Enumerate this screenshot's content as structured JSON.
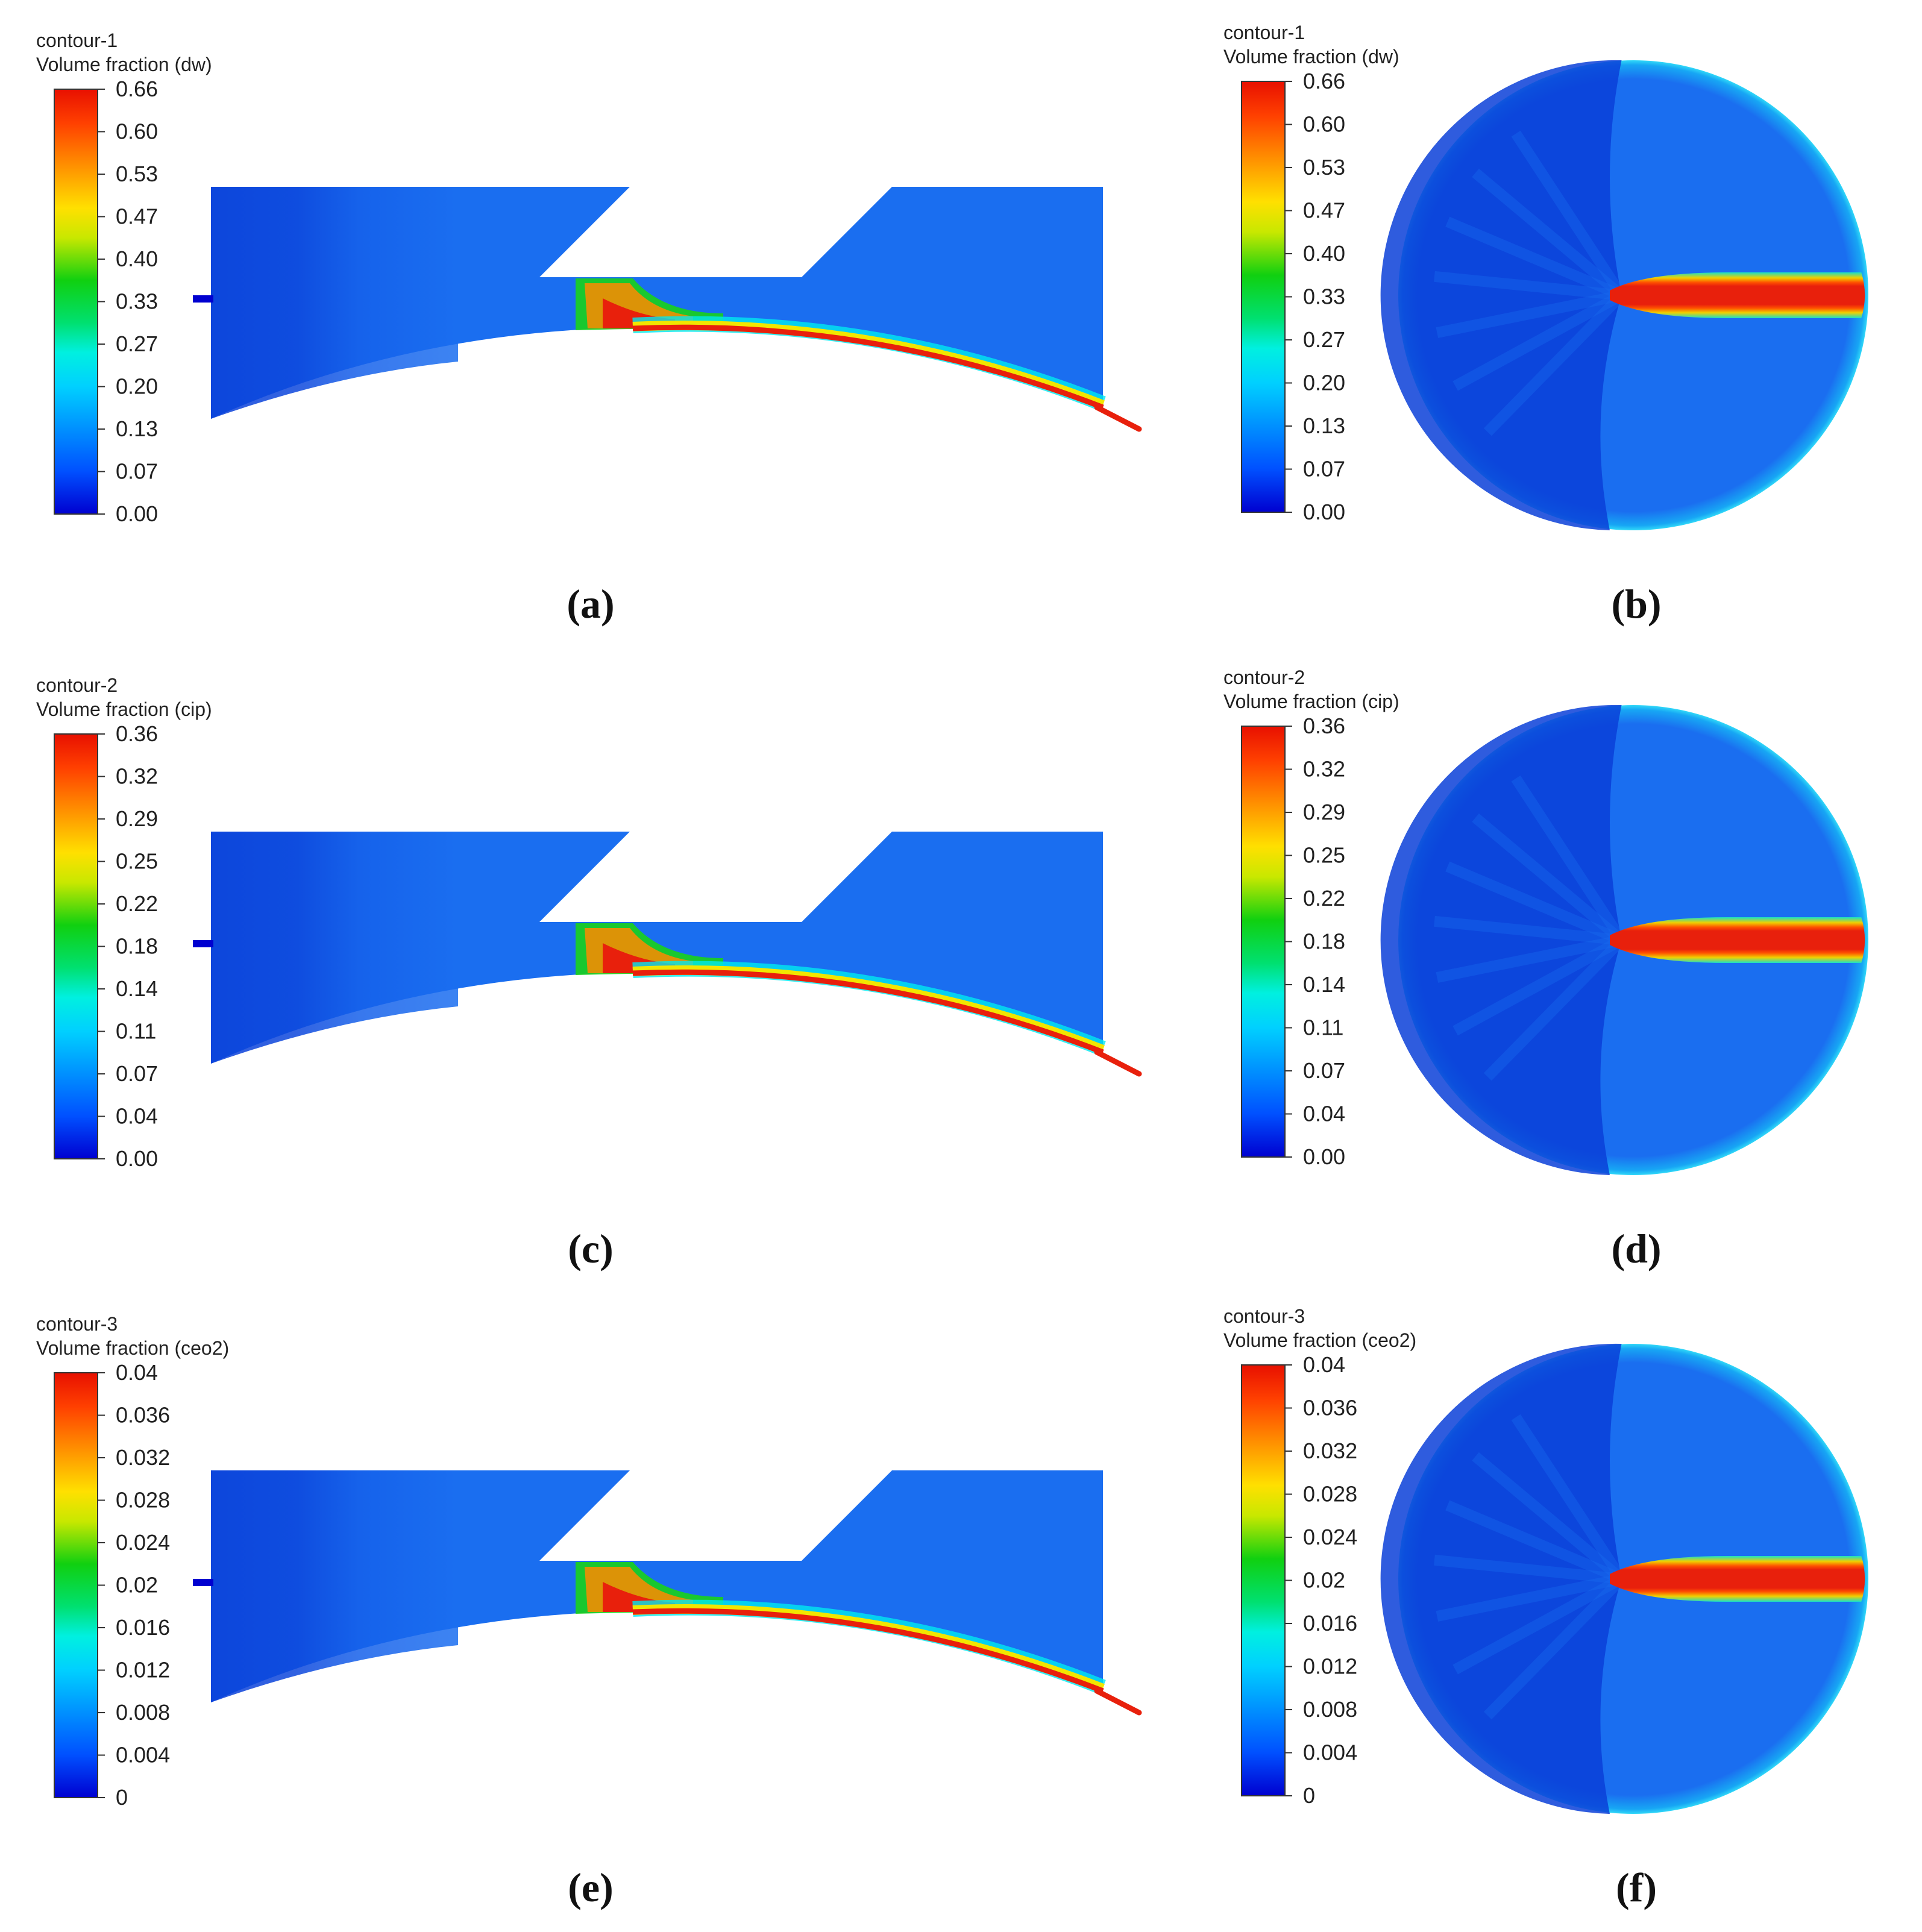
{
  "colors": {
    "red": "#e8200c",
    "orange": "#ff8a00",
    "yellow": "#f2e600",
    "green": "#1ad21a",
    "cyan": "#00e8f0",
    "blue_mid": "#1a78ff",
    "blue_bg": "#1a6ef0",
    "blue_dark": "#0a3fd8",
    "blue_deep": "#0000d0"
  },
  "panels": [
    {
      "id": "a",
      "caption": "(a)",
      "view": "side",
      "legend": {
        "title_line1": "contour-1",
        "title_line2": "Volume fraction (dw)",
        "ticks": [
          "0.66",
          "0.60",
          "0.53",
          "0.47",
          "0.40",
          "0.33",
          "0.27",
          "0.20",
          "0.13",
          "0.07",
          "0.00"
        ]
      }
    },
    {
      "id": "b",
      "caption": "(b)",
      "view": "circle",
      "legend": {
        "title_line1": "contour-1",
        "title_line2": "Volume fraction (dw)",
        "ticks": [
          "0.66",
          "0.60",
          "0.53",
          "0.47",
          "0.40",
          "0.33",
          "0.27",
          "0.20",
          "0.13",
          "0.07",
          "0.00"
        ]
      }
    },
    {
      "id": "c",
      "caption": "(c)",
      "view": "side",
      "legend": {
        "title_line1": "contour-2",
        "title_line2": "Volume fraction (cip)",
        "ticks": [
          "0.36",
          "0.32",
          "0.29",
          "0.25",
          "0.22",
          "0.18",
          "0.14",
          "0.11",
          "0.07",
          "0.04",
          "0.00"
        ]
      }
    },
    {
      "id": "d",
      "caption": "(d)",
      "view": "circle",
      "legend": {
        "title_line1": "contour-2",
        "title_line2": "Volume fraction (cip)",
        "ticks": [
          "0.36",
          "0.32",
          "0.29",
          "0.25",
          "0.22",
          "0.18",
          "0.14",
          "0.11",
          "0.07",
          "0.04",
          "0.00"
        ]
      }
    },
    {
      "id": "e",
      "caption": "(e)",
      "view": "side",
      "legend": {
        "title_line1": "contour-3",
        "title_line2": "Volume fraction (ceo2)",
        "ticks": [
          "0.04",
          "0.036",
          "0.032",
          "0.028",
          "0.024",
          "0.02",
          "0.016",
          "0.012",
          "0.008",
          "0.004",
          "0"
        ]
      }
    },
    {
      "id": "f",
      "caption": "(f)",
      "view": "circle",
      "legend": {
        "title_line1": "contour-3",
        "title_line2": "Volume fraction (ceo2)",
        "ticks": [
          "0.04",
          "0.036",
          "0.032",
          "0.028",
          "0.024",
          "0.02",
          "0.016",
          "0.012",
          "0.008",
          "0.004",
          "0"
        ]
      }
    }
  ]
}
